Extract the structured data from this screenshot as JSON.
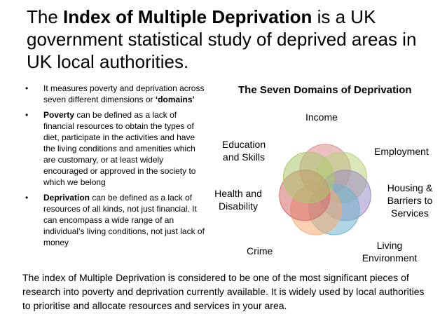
{
  "title": {
    "pre": "The ",
    "bold": "Index of Multiple Deprivation",
    "post": " is a UK government statistical study of deprived areas in UK local authorities."
  },
  "bullets": [
    {
      "bullet": "•",
      "pre": "It measures poverty and deprivation across seven different dimensions or ",
      "bold": "‘domains’",
      "post": ""
    },
    {
      "bullet": "•",
      "pre": "",
      "bold": "Poverty",
      "post": " can be  defined as a lack of financial resources to  obtain the types of diet, participate in the activities and have the living conditions and amenities which are customary, or at least widely encouraged or approved in the society  to which we belong"
    },
    {
      "bullet": "•",
      "pre": "",
      "bold": "Deprivation",
      "post": " can be defined as a lack of resources of all kinds, not just financial. It can encompass a wide range of an individual’s living conditions, not just lack of money"
    }
  ],
  "diagram": {
    "title": "The Seven Domains of Deprivation",
    "domains": {
      "income": "Income",
      "employment": "Employment",
      "housing": "Housing & Barriers to Services",
      "living": "Living Environment",
      "crime": "Crime",
      "health": "Health and Disability",
      "education": "Education and Skills"
    },
    "colors": [
      "#d98d8d",
      "#b9d37f",
      "#9d8bc2",
      "#70b3cc",
      "#f5ac73",
      "#d56a6a",
      "#a9c96d"
    ]
  },
  "footer": "The index of Multiple Deprivation is considered to be one of the most significant  pieces of research into poverty and deprivation currently available. It is widely used by local authorities to prioritise and allocate  resources and services in your area."
}
